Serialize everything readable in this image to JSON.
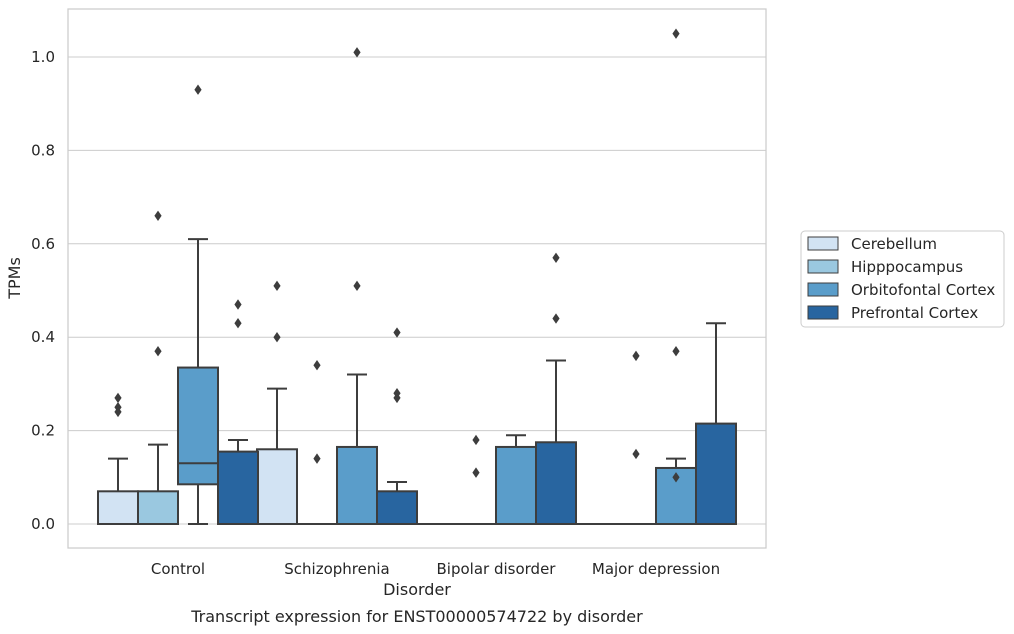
{
  "caption": "Transcript expression for ENST00000574722 by disorder",
  "chart_data": {
    "type": "box",
    "xlabel": "Disorder",
    "ylabel": "TPMs",
    "ylim": [
      -0.05,
      1.1
    ],
    "yticks": [
      0.0,
      0.2,
      0.4,
      0.6,
      0.8,
      1.0
    ],
    "ytick_labels": [
      "0.0",
      "0.2",
      "0.4",
      "0.6",
      "0.8",
      "1.0"
    ],
    "grid": "horizontal",
    "legend_position": "right",
    "categories": [
      "Control",
      "Schizophrenia",
      "Bipolar disorder",
      "Major depression"
    ],
    "series": [
      {
        "name": "Cerebellum",
        "color": "#d2e3f3",
        "boxes": [
          {
            "whisker_low": 0.0,
            "q1": 0.0,
            "median": 0.0,
            "q3": 0.07,
            "whisker_high": 0.14,
            "outliers": [
              0.24,
              0.25,
              0.27
            ]
          },
          {
            "whisker_low": 0.0,
            "q1": 0.0,
            "median": 0.0,
            "q3": 0.16,
            "whisker_high": 0.29,
            "outliers": [
              0.4,
              0.51
            ]
          },
          {
            "whisker_low": 0.0,
            "q1": 0.0,
            "median": 0.0,
            "q3": 0.0,
            "whisker_high": 0.0,
            "outliers": []
          },
          {
            "whisker_low": 0.0,
            "q1": 0.0,
            "median": 0.0,
            "q3": 0.0,
            "whisker_high": 0.0,
            "outliers": []
          }
        ]
      },
      {
        "name": "Hipppocampus",
        "color": "#9ac8e0",
        "boxes": [
          {
            "whisker_low": 0.0,
            "q1": 0.0,
            "median": 0.0,
            "q3": 0.07,
            "whisker_high": 0.17,
            "outliers": [
              0.37,
              0.66
            ]
          },
          {
            "whisker_low": 0.0,
            "q1": 0.0,
            "median": 0.0,
            "q3": 0.0,
            "whisker_high": 0.0,
            "outliers": [
              0.14,
              0.34
            ]
          },
          {
            "whisker_low": 0.0,
            "q1": 0.0,
            "median": 0.0,
            "q3": 0.0,
            "whisker_high": 0.0,
            "outliers": [
              0.11,
              0.18
            ]
          },
          {
            "whisker_low": 0.0,
            "q1": 0.0,
            "median": 0.0,
            "q3": 0.0,
            "whisker_high": 0.0,
            "outliers": [
              0.15,
              0.36
            ]
          }
        ]
      },
      {
        "name": "Orbitofontal Cortex",
        "color": "#5a9dca",
        "boxes": [
          {
            "whisker_low": 0.0,
            "q1": 0.085,
            "median": 0.13,
            "q3": 0.335,
            "whisker_high": 0.61,
            "outliers": [
              0.93
            ]
          },
          {
            "whisker_low": 0.0,
            "q1": 0.0,
            "median": 0.0,
            "q3": 0.165,
            "whisker_high": 0.32,
            "outliers": [
              0.51,
              1.01
            ]
          },
          {
            "whisker_low": 0.0,
            "q1": 0.0,
            "median": 0.0,
            "q3": 0.165,
            "whisker_high": 0.19,
            "outliers": []
          },
          {
            "whisker_low": 0.0,
            "q1": 0.0,
            "median": 0.0,
            "q3": 0.12,
            "whisker_high": 0.14,
            "outliers": [
              0.1,
              0.37,
              1.05
            ]
          }
        ]
      },
      {
        "name": "Prefrontal Cortex",
        "color": "#2865a0",
        "boxes": [
          {
            "whisker_low": 0.0,
            "q1": 0.0,
            "median": 0.0,
            "q3": 0.155,
            "whisker_high": 0.18,
            "outliers": [
              0.43,
              0.47
            ]
          },
          {
            "whisker_low": 0.0,
            "q1": 0.0,
            "median": 0.0,
            "q3": 0.07,
            "whisker_high": 0.09,
            "outliers": [
              0.27,
              0.28,
              0.41
            ]
          },
          {
            "whisker_low": 0.0,
            "q1": 0.0,
            "median": 0.0,
            "q3": 0.175,
            "whisker_high": 0.35,
            "outliers": [
              0.44,
              0.57
            ]
          },
          {
            "whisker_low": 0.0,
            "q1": 0.0,
            "median": 0.0,
            "q3": 0.215,
            "whisker_high": 0.43,
            "outliers": []
          }
        ]
      }
    ]
  }
}
